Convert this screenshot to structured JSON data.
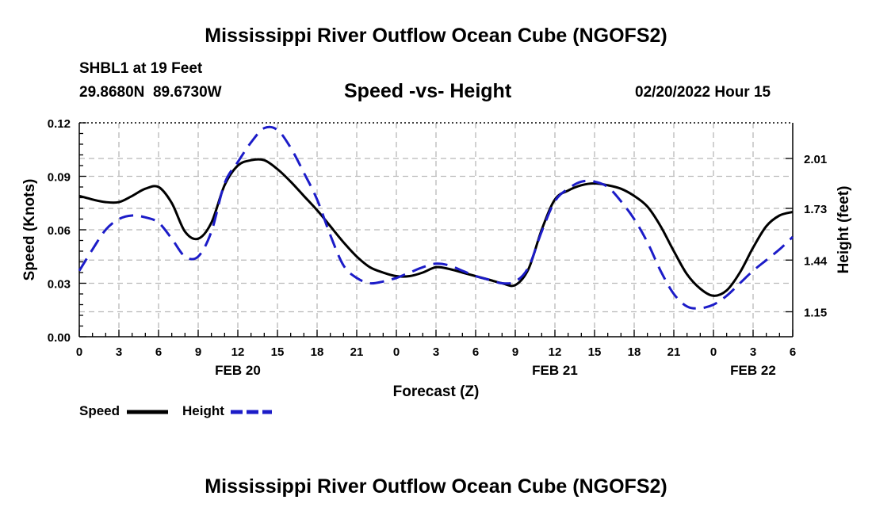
{
  "page": {
    "title": "Mississippi River Outflow Ocean Cube (NGOFS2)",
    "station_line": "SHBL1 at 19 Feet",
    "coords_line": "29.8680N  89.6730W",
    "subtitle": "Speed -vs- Height",
    "timestamp": "02/20/2022 Hour 15",
    "bottom_title": "Mississippi River Outflow Ocean Cube (NGOFS2)"
  },
  "chart_data": {
    "type": "line",
    "title": "Speed -vs- Height",
    "xlabel": "Forecast (Z)",
    "ylabel": "Speed (Knots)",
    "y2label": "Height (feet)",
    "xlim": [
      0,
      54
    ],
    "ylim": [
      0,
      0.12
    ],
    "y2lim": [
      1.01,
      2.21
    ],
    "yticks": [
      0,
      0.03,
      0.06,
      0.09,
      0.12
    ],
    "ytick_labels": [
      "0.00",
      "0.03",
      "0.06",
      "0.09",
      "0.12"
    ],
    "y2ticks": [
      1.15,
      1.44,
      1.73,
      2.01
    ],
    "y2tick_labels": [
      "1.15",
      "1.44",
      "1.73",
      "2.01"
    ],
    "xticks": [
      0,
      3,
      6,
      9,
      12,
      15,
      18,
      21,
      24,
      27,
      30,
      33,
      36,
      39,
      42,
      45,
      48,
      51,
      54
    ],
    "xtick_labels": [
      "0",
      "3",
      "6",
      "9",
      "12",
      "15",
      "18",
      "21",
      "0",
      "3",
      "6",
      "9",
      "12",
      "15",
      "18",
      "21",
      "0",
      "3",
      "6"
    ],
    "date_labels": [
      {
        "x": 12,
        "label": "FEB 20"
      },
      {
        "x": 36,
        "label": "FEB 21"
      },
      {
        "x": 51,
        "label": "FEB 22"
      }
    ],
    "grid": true,
    "legend": "bottom-left",
    "series": [
      {
        "name": "Speed",
        "color": "#000000",
        "style": "solid",
        "axis": "left",
        "x": [
          0,
          1,
          2,
          3,
          4,
          5,
          6,
          7,
          8,
          9,
          10,
          11,
          12,
          13,
          14,
          15,
          16,
          17,
          18,
          19,
          20,
          21,
          22,
          23,
          24,
          25,
          26,
          27,
          28,
          29,
          30,
          31,
          32,
          33,
          34,
          35,
          36,
          37,
          38,
          39,
          40,
          41,
          42,
          43,
          44,
          45,
          46,
          47,
          48,
          49,
          50,
          51,
          52,
          53,
          54
        ],
        "values": [
          0.079,
          0.077,
          0.0755,
          0.0755,
          0.079,
          0.083,
          0.084,
          0.075,
          0.059,
          0.055,
          0.064,
          0.085,
          0.096,
          0.099,
          0.099,
          0.094,
          0.087,
          0.079,
          0.071,
          0.062,
          0.053,
          0.045,
          0.039,
          0.036,
          0.034,
          0.034,
          0.036,
          0.039,
          0.038,
          0.036,
          0.034,
          0.032,
          0.03,
          0.029,
          0.038,
          0.06,
          0.077,
          0.082,
          0.085,
          0.086,
          0.085,
          0.083,
          0.079,
          0.073,
          0.062,
          0.048,
          0.035,
          0.027,
          0.023,
          0.026,
          0.036,
          0.05,
          0.062,
          0.068,
          0.07
        ]
      },
      {
        "name": "Height",
        "color": "#1c1cc8",
        "style": "dashed",
        "axis": "right",
        "x": [
          0,
          1,
          2,
          3,
          4,
          5,
          6,
          7,
          8,
          9,
          10,
          11,
          12,
          13,
          14,
          15,
          16,
          17,
          18,
          19,
          20,
          21,
          22,
          23,
          24,
          25,
          26,
          27,
          28,
          29,
          30,
          31,
          32,
          33,
          34,
          35,
          36,
          37,
          38,
          39,
          40,
          41,
          42,
          43,
          44,
          45,
          46,
          47,
          48,
          49,
          50,
          51,
          52,
          53,
          54
        ],
        "values": [
          1.38,
          1.5,
          1.61,
          1.67,
          1.69,
          1.68,
          1.65,
          1.56,
          1.46,
          1.46,
          1.6,
          1.87,
          1.99,
          2.1,
          2.18,
          2.17,
          2.07,
          1.93,
          1.78,
          1.58,
          1.41,
          1.34,
          1.31,
          1.32,
          1.34,
          1.37,
          1.4,
          1.42,
          1.41,
          1.38,
          1.35,
          1.33,
          1.31,
          1.32,
          1.4,
          1.6,
          1.77,
          1.84,
          1.88,
          1.88,
          1.85,
          1.77,
          1.67,
          1.54,
          1.38,
          1.25,
          1.18,
          1.17,
          1.19,
          1.24,
          1.31,
          1.38,
          1.44,
          1.5,
          1.57
        ]
      }
    ]
  }
}
